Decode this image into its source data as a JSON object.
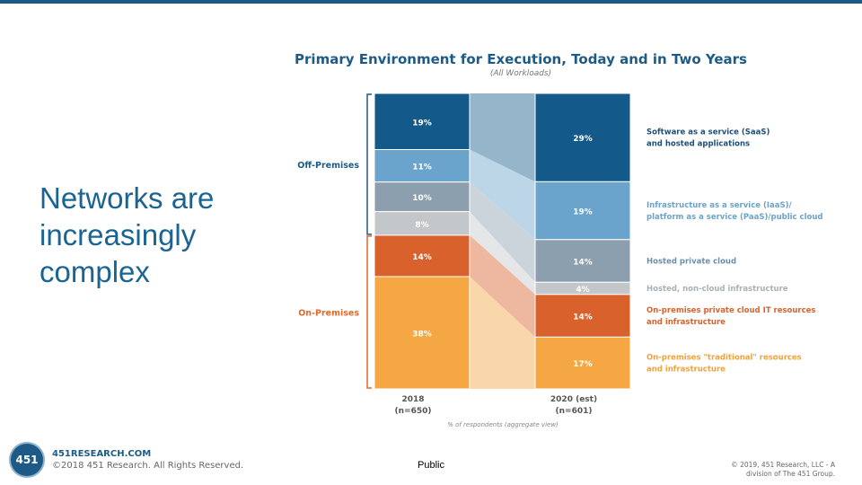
{
  "slide": {
    "title": "Networks are increasingly complex"
  },
  "chart_data": {
    "type": "bar",
    "stacked": true,
    "title": "Primary Environment for Execution, Today and in Two Years",
    "subtitle": "(All Workloads)",
    "xlabel": "% of respondents (aggregate view)",
    "categories": [
      {
        "label": "2018",
        "n": "(n=650)"
      },
      {
        "label": "2020 (est)",
        "n": "(n=601)"
      }
    ],
    "groups": [
      {
        "label": "Off-Premises",
        "color": "#1d5b86"
      },
      {
        "label": "On-Premises",
        "color": "#e06a2a"
      }
    ],
    "series": [
      {
        "name": "Software as a service (SaaS) and hosted applications",
        "name_lines": [
          "Software as a service (SaaS)",
          "and hosted applications"
        ],
        "values": [
          19,
          29
        ],
        "color": "#135a8a",
        "label_color": "#1d4f78",
        "group": "Off-Premises"
      },
      {
        "name": "Infrastructure as a service (IaaS)/ platform as a service (PaaS)/public cloud",
        "name_lines": [
          "Infrastructure as a service (IaaS)/",
          "platform as a service (PaaS)/public cloud"
        ],
        "values": [
          11,
          19
        ],
        "color": "#6aa3cb",
        "label_color": "#6aa3cb",
        "group": "Off-Premises"
      },
      {
        "name": "Hosted private cloud",
        "name_lines": [
          "Hosted private cloud"
        ],
        "values": [
          10,
          14
        ],
        "color": "#8c9fae",
        "label_color": "#6d8fa8",
        "group": "Off-Premises"
      },
      {
        "name": "Hosted, non-cloud infrastructure",
        "name_lines": [
          "Hosted, non-cloud infrastructure"
        ],
        "values": [
          8,
          4
        ],
        "color": "#c4c7c9",
        "label_color": "#a9b0b5",
        "group": "Off-Premises"
      },
      {
        "name": "On-premises private cloud IT resources and infrastructure",
        "name_lines": [
          "On-premises private cloud IT resources",
          "and infrastructure"
        ],
        "values": [
          14,
          14
        ],
        "color": "#d9622c",
        "label_color": "#d9622c",
        "group": "On-Premises"
      },
      {
        "name": "On-premises \"traditional\" resources and infrastructure",
        "name_lines": [
          "On-premises \"traditional\" resources",
          "and infrastructure"
        ],
        "values": [
          38,
          17
        ],
        "color": "#f4a742",
        "label_color": "#f0a23c",
        "group": "On-Premises"
      }
    ]
  },
  "footer": {
    "logo_text": "451",
    "site": "451RESEARCH.COM",
    "copyright": "©2018 451 Research. All Rights Reserved.",
    "classification": "Public",
    "right_line1": "© 2019, 451 Research, LLC - A",
    "right_line2": "division of The 451 Group."
  }
}
